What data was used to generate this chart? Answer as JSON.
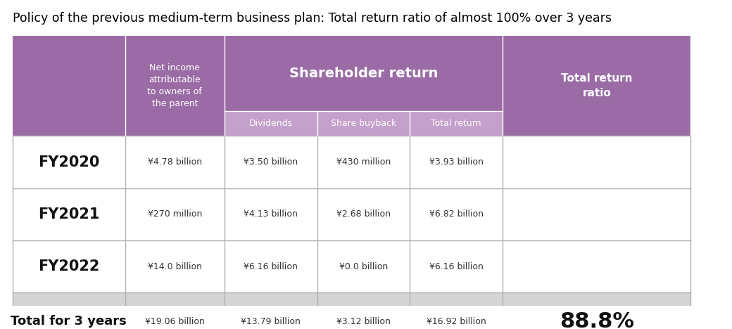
{
  "title": "Policy of the previous medium-term business plan: Total return ratio of almost 100% over 3 years",
  "title_fontsize": 12.5,
  "title_color": "#000000",
  "background_color": "#ffffff",
  "purple_dark": "#9b6ba5",
  "purple_light": "#c4a0cc",
  "gray_bg": "#d4d4d4",
  "white_bg": "#ffffff",
  "rows": [
    {
      "label": "FY2020",
      "net_income": "¥4.78 billion",
      "dividends": "¥3.50 billion",
      "share_buyback": "¥430 million",
      "total_return": "¥3.93 billion",
      "total_return_ratio": ""
    },
    {
      "label": "FY2021",
      "net_income": "¥270 million",
      "dividends": "¥4.13 billion",
      "share_buyback": "¥2.68 billion",
      "total_return": "¥6.82 billion",
      "total_return_ratio": ""
    },
    {
      "label": "FY2022",
      "net_income": "¥14.0 billion",
      "dividends": "¥6.16 billion",
      "share_buyback": "¥0.0 billion",
      "total_return": "¥6.16 billion",
      "total_return_ratio": ""
    },
    {
      "label": "Total for 3 years",
      "net_income": "¥19.06 billion",
      "dividends": "¥13.79 billion",
      "share_buyback": "¥3.12 billion",
      "total_return": "¥16.92 billion",
      "total_return_ratio": "88.8%"
    }
  ]
}
